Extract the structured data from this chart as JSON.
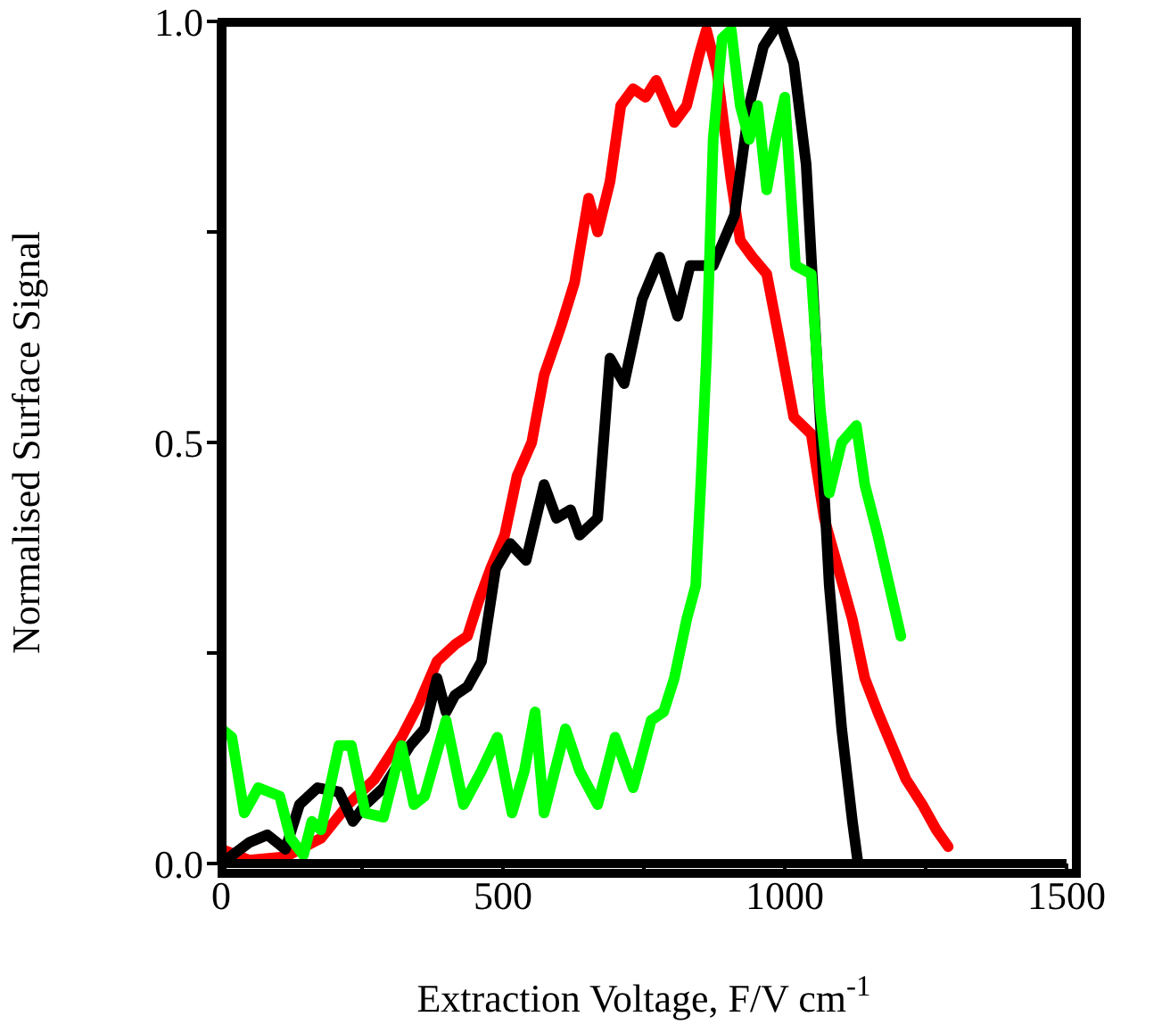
{
  "chart_data": {
    "type": "line",
    "xlabel": "Extraction Voltage, F/V cm$^{-1}$",
    "ylabel": "Normalised Surface Signal",
    "xlim": [
      0,
      1500
    ],
    "ylim": [
      0,
      1.0
    ],
    "xticks": [
      0,
      {
        "value": 250,
        "label": null
      },
      500,
      {
        "value": 750,
        "label": null
      },
      1000,
      {
        "value": 1250,
        "label": null
      },
      1500
    ],
    "yticks": [
      {
        "value": 0,
        "label": "0.0"
      },
      {
        "value": 0.25,
        "label": null
      },
      {
        "value": 0.5,
        "label": "0.5"
      },
      {
        "value": 0.75,
        "label": null
      },
      {
        "value": 1.0,
        "label": "1.0"
      }
    ],
    "grid": false,
    "legend": false,
    "marker": "none",
    "line_style": "solid",
    "series": [
      {
        "color": "#ff0000",
        "x": [
          0,
          50,
          114,
          177,
          225,
          272,
          320,
          351,
          383,
          415,
          437,
          456,
          478,
          503,
          525,
          551,
          573,
          604,
          627,
          642,
          652,
          668,
          690,
          709,
          731,
          753,
          772,
          804,
          826,
          848,
          861,
          880,
          905,
          921,
          943,
          968,
          991,
          1016,
          1047,
          1070,
          1095,
          1120,
          1142,
          1165,
          1190,
          1215,
          1244,
          1269,
          1290
        ],
        "values": [
          0.017,
          0.004,
          0.008,
          0.03,
          0.07,
          0.1,
          0.15,
          0.19,
          0.24,
          0.26,
          0.27,
          0.31,
          0.35,
          0.39,
          0.46,
          0.5,
          0.58,
          0.64,
          0.69,
          0.75,
          0.79,
          0.75,
          0.81,
          0.9,
          0.92,
          0.91,
          0.93,
          0.88,
          0.9,
          0.96,
          0.99,
          0.94,
          0.81,
          0.74,
          0.72,
          0.7,
          0.62,
          0.53,
          0.51,
          0.41,
          0.35,
          0.29,
          0.22,
          0.18,
          0.14,
          0.1,
          0.07,
          0.04,
          0.02
        ]
      },
      {
        "color": "#000000",
        "x": [
          0,
          50,
          82,
          114,
          139,
          171,
          209,
          234,
          256,
          288,
          335,
          361,
          383,
          399,
          415,
          437,
          462,
          487,
          513,
          541,
          573,
          595,
          620,
          636,
          668,
          690,
          715,
          747,
          778,
          810,
          832,
          873,
          911,
          937,
          962,
          991,
          1016,
          1038,
          1057,
          1079,
          1101,
          1120,
          1130
        ],
        "values": [
          0,
          0.025,
          0.034,
          0.017,
          0.07,
          0.09,
          0.085,
          0.05,
          0.07,
          0.09,
          0.14,
          0.16,
          0.22,
          0.18,
          0.2,
          0.21,
          0.24,
          0.35,
          0.38,
          0.36,
          0.45,
          0.41,
          0.42,
          0.39,
          0.41,
          0.6,
          0.57,
          0.67,
          0.72,
          0.65,
          0.71,
          0.71,
          0.77,
          0.9,
          0.97,
          1.0,
          0.95,
          0.83,
          null,
          0.33,
          0.16,
          0.05,
          0
        ]
      },
      {
        "color": "#00ff00",
        "x": [
          0,
          19,
          41,
          66,
          104,
          123,
          146,
          161,
          177,
          209,
          231,
          256,
          288,
          320,
          342,
          361,
          399,
          430,
          462,
          490,
          516,
          538,
          557,
          573,
          611,
          636,
          668,
          699,
          731,
          763,
          785,
          804,
          826,
          842,
          851,
          861,
          873,
          889,
          905,
          921,
          937,
          952,
          968,
          984,
          1000,
          1019,
          1047,
          1063,
          1079,
          1101,
          1127,
          1142,
          1165,
          1206
        ],
        "values": [
          0.16,
          0.15,
          0.06,
          0.09,
          0.08,
          0.03,
          0.01,
          0.05,
          0.04,
          0.14,
          0.14,
          0.06,
          0.055,
          0.14,
          0.07,
          0.08,
          0.17,
          0.07,
          0.11,
          0.15,
          0.06,
          0.11,
          0.18,
          0.06,
          0.16,
          0.11,
          0.07,
          0.15,
          0.09,
          0.17,
          0.18,
          0.22,
          0.29,
          0.33,
          0.45,
          0.6,
          0.86,
          0.98,
          0.99,
          0.9,
          0.86,
          0.9,
          0.8,
          0.86,
          0.91,
          0.71,
          0.7,
          0.54,
          0.44,
          0.5,
          0.52,
          0.45,
          0.39,
          0.27
        ]
      }
    ]
  }
}
